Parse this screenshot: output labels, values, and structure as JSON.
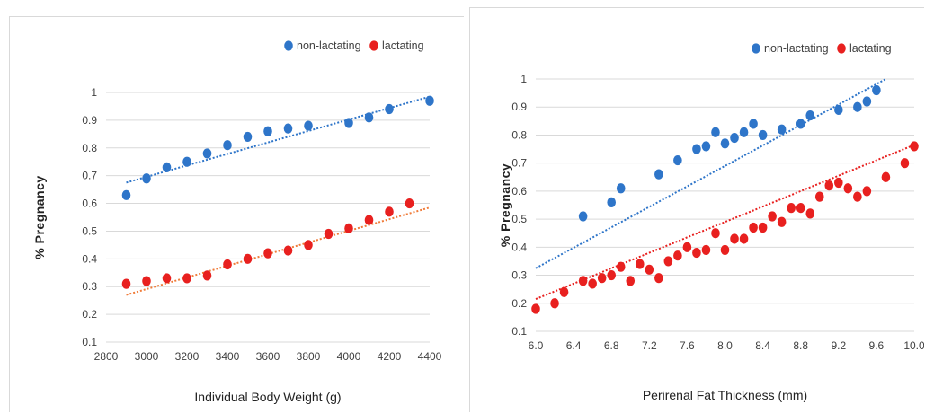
{
  "chart_data": [
    {
      "type": "scatter",
      "title": "",
      "xlabel": "Individual Body Weight (g)",
      "ylabel": "% Pregnancy",
      "xlim": [
        2800,
        4400
      ],
      "ylim": [
        0.1,
        1
      ],
      "x_ticks": [
        "2800",
        "3000",
        "3200",
        "3400",
        "3600",
        "3800",
        "4000",
        "4200",
        "4400"
      ],
      "y_ticks": [
        "0.1",
        "0.2",
        "0.3",
        "0.4",
        "0.5",
        "0.6",
        "0.7",
        "0.8",
        "0.9",
        "1"
      ],
      "grid": "horizontal",
      "legend_position": "top-right",
      "series": [
        {
          "name": "non-lactating",
          "color": "#2e75c9",
          "trend_color": "#2e75c9",
          "points": [
            [
              2900,
              0.63
            ],
            [
              3000,
              0.69
            ],
            [
              3100,
              0.73
            ],
            [
              3200,
              0.75
            ],
            [
              3300,
              0.78
            ],
            [
              3400,
              0.81
            ],
            [
              3500,
              0.84
            ],
            [
              3600,
              0.86
            ],
            [
              3700,
              0.87
            ],
            [
              3800,
              0.88
            ],
            [
              4000,
              0.89
            ],
            [
              4100,
              0.91
            ],
            [
              4200,
              0.94
            ],
            [
              4400,
              0.97
            ]
          ],
          "trend": [
            [
              2900,
              0.675
            ],
            [
              4400,
              0.985
            ]
          ]
        },
        {
          "name": "lactating",
          "color": "#e8201f",
          "trend_color": "#f07c3a",
          "points": [
            [
              2900,
              0.31
            ],
            [
              3000,
              0.32
            ],
            [
              3100,
              0.33
            ],
            [
              3200,
              0.33
            ],
            [
              3300,
              0.34
            ],
            [
              3400,
              0.38
            ],
            [
              3500,
              0.4
            ],
            [
              3600,
              0.42
            ],
            [
              3700,
              0.43
            ],
            [
              3800,
              0.45
            ],
            [
              3900,
              0.49
            ],
            [
              4000,
              0.51
            ],
            [
              4100,
              0.54
            ],
            [
              4200,
              0.57
            ],
            [
              4300,
              0.6
            ]
          ],
          "trend": [
            [
              2900,
              0.27
            ],
            [
              4400,
              0.585
            ]
          ]
        }
      ]
    },
    {
      "type": "scatter",
      "title": "",
      "xlabel": "Perirenal Fat Thickness (mm)",
      "ylabel": "% Pregnancy",
      "xlim": [
        6.0,
        10.0
      ],
      "ylim": [
        0.1,
        1
      ],
      "x_ticks": [
        "6.0",
        "6.4",
        "6.8",
        "7.2",
        "7.6",
        "8.0",
        "8.4",
        "8.8",
        "9.2",
        "9.6",
        "10.0"
      ],
      "y_ticks": [
        "0.1",
        "0.2",
        "0.3",
        "0.4",
        "0.5",
        "0.6",
        "0.7",
        "0.8",
        "0.9",
        "1"
      ],
      "grid": "horizontal",
      "legend_position": "top-right",
      "series": [
        {
          "name": "non-lactating",
          "color": "#2e75c9",
          "trend_color": "#2e75c9",
          "points": [
            [
              6.5,
              0.51
            ],
            [
              6.8,
              0.56
            ],
            [
              6.9,
              0.61
            ],
            [
              7.3,
              0.66
            ],
            [
              7.5,
              0.71
            ],
            [
              7.7,
              0.75
            ],
            [
              7.8,
              0.76
            ],
            [
              7.9,
              0.81
            ],
            [
              8.0,
              0.77
            ],
            [
              8.1,
              0.79
            ],
            [
              8.2,
              0.81
            ],
            [
              8.3,
              0.84
            ],
            [
              8.4,
              0.8
            ],
            [
              8.6,
              0.82
            ],
            [
              8.8,
              0.84
            ],
            [
              8.9,
              0.87
            ],
            [
              9.2,
              0.89
            ],
            [
              9.4,
              0.9
            ],
            [
              9.5,
              0.92
            ],
            [
              9.6,
              0.96
            ]
          ],
          "trend": [
            [
              6.0,
              0.325
            ],
            [
              9.7,
              1.0
            ]
          ]
        },
        {
          "name": "lactating",
          "color": "#e8201f",
          "trend_color": "#e8201f",
          "points": [
            [
              6.0,
              0.18
            ],
            [
              6.2,
              0.2
            ],
            [
              6.3,
              0.24
            ],
            [
              6.5,
              0.28
            ],
            [
              6.6,
              0.27
            ],
            [
              6.7,
              0.29
            ],
            [
              6.8,
              0.3
            ],
            [
              6.9,
              0.33
            ],
            [
              7.0,
              0.28
            ],
            [
              7.1,
              0.34
            ],
            [
              7.2,
              0.32
            ],
            [
              7.3,
              0.29
            ],
            [
              7.4,
              0.35
            ],
            [
              7.5,
              0.37
            ],
            [
              7.6,
              0.4
            ],
            [
              7.7,
              0.38
            ],
            [
              7.8,
              0.39
            ],
            [
              7.9,
              0.45
            ],
            [
              8.0,
              0.39
            ],
            [
              8.1,
              0.43
            ],
            [
              8.2,
              0.43
            ],
            [
              8.3,
              0.47
            ],
            [
              8.4,
              0.47
            ],
            [
              8.5,
              0.51
            ],
            [
              8.6,
              0.49
            ],
            [
              8.7,
              0.54
            ],
            [
              8.8,
              0.54
            ],
            [
              8.9,
              0.52
            ],
            [
              9.0,
              0.58
            ],
            [
              9.1,
              0.62
            ],
            [
              9.2,
              0.63
            ],
            [
              9.3,
              0.61
            ],
            [
              9.4,
              0.58
            ],
            [
              9.5,
              0.6
            ],
            [
              9.7,
              0.65
            ],
            [
              9.9,
              0.7
            ],
            [
              10.0,
              0.76
            ]
          ],
          "trend": [
            [
              6.0,
              0.215
            ],
            [
              10.0,
              0.765
            ]
          ]
        }
      ]
    }
  ]
}
